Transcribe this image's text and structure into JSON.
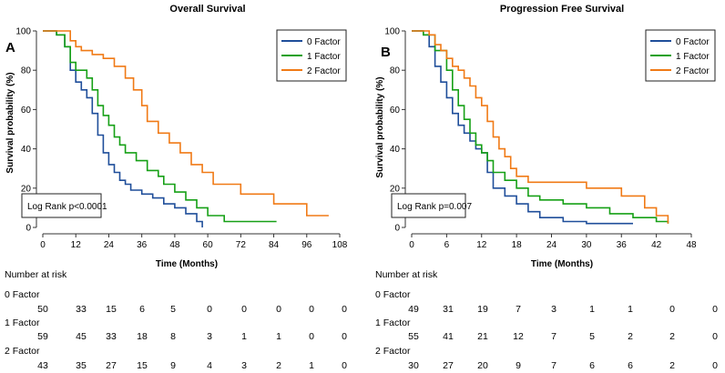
{
  "colors": {
    "zero": "#1f4e9a",
    "one": "#16a016",
    "two": "#f07a16",
    "axis": "#333333"
  },
  "series_names": [
    "0 Factor",
    "1 Factor",
    "2 Factor"
  ],
  "risk_table": {
    "heading": "Number at risk",
    "group_labels": [
      "0 Factor",
      "1 Factor",
      "2 Factor"
    ]
  },
  "chart_data": [
    {
      "panel": "A",
      "type": "line",
      "title": "Overall Survival",
      "xlabel": "Time (Months)",
      "ylabel": "Survival probability (%)",
      "xlim": [
        0,
        108
      ],
      "ylim": [
        0,
        100
      ],
      "xticks": [
        0,
        12,
        24,
        36,
        48,
        60,
        72,
        84,
        96,
        108
      ],
      "xtick_labels": [
        "0",
        "12",
        "24",
        "36",
        "48",
        "60",
        "72",
        "84",
        "96",
        "108"
      ],
      "yticks": [
        0,
        20,
        40,
        60,
        80,
        100
      ],
      "ytick_labels": [
        "0",
        "20",
        "40",
        "60",
        "80",
        "100"
      ],
      "legend_position": "top-right",
      "annotation": "Log Rank  p<0.0001",
      "series": [
        {
          "name": "0 Factor",
          "color_key": "zero",
          "x": [
            0,
            5,
            8,
            10,
            12,
            14,
            16,
            18,
            20,
            22,
            24,
            26,
            28,
            30,
            32,
            36,
            40,
            44,
            48,
            52,
            56,
            58
          ],
          "y": [
            100,
            98,
            92,
            80,
            74,
            70,
            66,
            58,
            47,
            38,
            32,
            28,
            24,
            22,
            19,
            17,
            15,
            12,
            10,
            7,
            3,
            0
          ]
        },
        {
          "name": "1 Factor",
          "color_key": "one",
          "x": [
            0,
            5,
            8,
            10,
            12,
            16,
            18,
            20,
            22,
            24,
            26,
            28,
            30,
            34,
            38,
            42,
            44,
            48,
            52,
            56,
            60,
            66,
            74,
            85
          ],
          "y": [
            100,
            98,
            92,
            84,
            80,
            76,
            70,
            62,
            57,
            52,
            46,
            42,
            38,
            34,
            29,
            26,
            22,
            18,
            14,
            10,
            6,
            3,
            3,
            3
          ]
        },
        {
          "name": "2 Factor",
          "color_key": "two",
          "x": [
            0,
            8,
            10,
            12,
            14,
            18,
            22,
            26,
            30,
            33,
            36,
            38,
            42,
            46,
            50,
            54,
            58,
            62,
            72,
            84,
            96,
            104
          ],
          "y": [
            100,
            100,
            95,
            92,
            90,
            88,
            86,
            82,
            76,
            70,
            62,
            54,
            48,
            43,
            38,
            32,
            28,
            22,
            17,
            12,
            6,
            6
          ]
        }
      ],
      "risk_x": [
        0,
        12,
        24,
        36,
        48,
        60,
        72,
        84,
        96,
        108
      ],
      "risk_rows": [
        [
          "50",
          "33",
          "15",
          "6",
          "5",
          "0",
          "0",
          "0",
          "0",
          "0"
        ],
        [
          "59",
          "45",
          "33",
          "18",
          "8",
          "3",
          "1",
          "1",
          "0",
          "0"
        ],
        [
          "43",
          "35",
          "27",
          "15",
          "9",
          "4",
          "3",
          "2",
          "1",
          "0"
        ]
      ]
    },
    {
      "panel": "B",
      "type": "line",
      "title": "Progression Free Survival",
      "xlabel": "Time (Months)",
      "ylabel": "Survival probability (%)",
      "xlim": [
        0,
        48
      ],
      "ylim": [
        0,
        100
      ],
      "xticks": [
        0,
        6,
        12,
        18,
        24,
        30,
        36,
        42,
        48
      ],
      "xtick_labels": [
        "0",
        "6",
        "12",
        "18",
        "24",
        "30",
        "36",
        "42",
        "48"
      ],
      "yticks": [
        0,
        20,
        40,
        60,
        80,
        100
      ],
      "ytick_labels": [
        "0",
        "20",
        "40",
        "60",
        "80",
        "100"
      ],
      "legend_position": "top-right",
      "annotation": "Log Rank  p=0.007",
      "series": [
        {
          "name": "0 Factor",
          "color_key": "zero",
          "x": [
            0,
            2,
            3,
            4,
            5,
            6,
            7,
            8,
            9,
            10,
            11,
            12,
            13,
            14,
            16,
            18,
            20,
            22,
            26,
            30,
            34,
            38
          ],
          "y": [
            100,
            98,
            92,
            82,
            74,
            66,
            58,
            52,
            48,
            44,
            40,
            38,
            28,
            20,
            16,
            12,
            8,
            5,
            3,
            2,
            2,
            2
          ]
        },
        {
          "name": "1 Factor",
          "color_key": "one",
          "x": [
            0,
            2,
            4,
            6,
            7,
            8,
            9,
            10,
            11,
            12,
            13,
            14,
            16,
            18,
            20,
            22,
            26,
            30,
            34,
            38,
            42,
            44
          ],
          "y": [
            100,
            98,
            90,
            80,
            70,
            62,
            55,
            48,
            42,
            38,
            34,
            28,
            24,
            20,
            16,
            14,
            12,
            10,
            7,
            5,
            3,
            2
          ]
        },
        {
          "name": "2 Factor",
          "color_key": "two",
          "x": [
            0,
            3,
            4,
            5,
            6,
            7,
            8,
            9,
            10,
            11,
            12,
            13,
            14,
            15,
            16,
            17,
            18,
            20,
            30,
            36,
            40,
            42,
            44
          ],
          "y": [
            100,
            98,
            93,
            90,
            86,
            82,
            80,
            76,
            72,
            66,
            62,
            54,
            46,
            40,
            36,
            30,
            26,
            23,
            20,
            16,
            10,
            6,
            2
          ]
        }
      ],
      "risk_x": [
        0,
        6,
        12,
        18,
        24,
        30,
        36,
        42,
        48
      ],
      "risk_rows": [
        [
          "49",
          "31",
          "19",
          "7",
          "3",
          "1",
          "1",
          "0",
          "0"
        ],
        [
          "55",
          "41",
          "21",
          "12",
          "7",
          "5",
          "2",
          "2",
          "0"
        ],
        [
          "30",
          "27",
          "20",
          "9",
          "7",
          "6",
          "6",
          "2",
          "0"
        ]
      ]
    }
  ]
}
